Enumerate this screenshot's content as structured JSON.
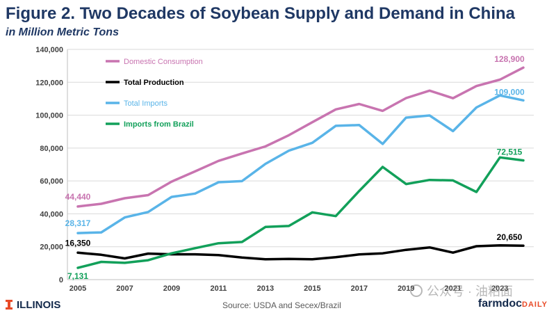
{
  "header": {
    "title": "Figure 2. Two Decades of Soybean Supply and Demand in China",
    "subtitle": "in Million Metric Tons"
  },
  "footer": {
    "source": "Source: USDA and Secex/Brazil",
    "left_logo": "ILLINOIS",
    "right_logo_farm": "farmdoc",
    "right_logo_daily": "DAILY",
    "watermark": "公众号 · 油粕面"
  },
  "colors": {
    "domestic": "#c874b0",
    "production": "#000000",
    "imports": "#59b4e8",
    "brazil": "#12a05a",
    "title": "#1f3864"
  },
  "chart_data": {
    "type": "line",
    "title": "Figure 2. Two Decades of Soybean Supply and Demand in China",
    "subtitle": "in Million Metric Tons",
    "x": [
      2005,
      2006,
      2007,
      2008,
      2009,
      2010,
      2011,
      2012,
      2013,
      2014,
      2015,
      2016,
      2017,
      2018,
      2019,
      2020,
      2021,
      2022,
      2023,
      2024
    ],
    "x_tick_labels": [
      "2005",
      "2007",
      "2009",
      "2011",
      "2013",
      "2015",
      "2017",
      "2019",
      "2021",
      "2023"
    ],
    "ylim": [
      0,
      140000
    ],
    "y_ticks": [
      "0",
      "20,000",
      "40,000",
      "60,000",
      "80,000",
      "100,000",
      "120,000",
      "140,000"
    ],
    "grid": true,
    "legend_position": "top-left",
    "series": [
      {
        "name": "Domestic Consumption",
        "color_key": "domestic",
        "values": [
          44440,
          46100,
          49500,
          51400,
          59600,
          65800,
          72200,
          76700,
          81000,
          87800,
          95700,
          103500,
          106800,
          102600,
          110400,
          114900,
          110300,
          117700,
          121600,
          128900
        ],
        "labels": [
          {
            "index": 0,
            "text": "44,440"
          },
          {
            "index": 19,
            "text": "128,900"
          }
        ]
      },
      {
        "name": "Total Production",
        "color_key": "production",
        "values": [
          16350,
          15100,
          12900,
          15800,
          15400,
          15400,
          14900,
          13400,
          12400,
          12600,
          12400,
          13600,
          15300,
          16000,
          18100,
          19600,
          16400,
          20300,
          20800,
          20650
        ],
        "labels": [
          {
            "index": 0,
            "text": "16,350"
          },
          {
            "index": 19,
            "text": "20,650"
          }
        ]
      },
      {
        "name": "Total Imports",
        "color_key": "imports",
        "values": [
          28317,
          28700,
          37800,
          41100,
          50300,
          52300,
          59200,
          59900,
          70400,
          78400,
          83200,
          93500,
          94000,
          82500,
          98500,
          99800,
          90300,
          104700,
          112000,
          109000
        ],
        "labels": [
          {
            "index": 0,
            "text": "28,317"
          },
          {
            "index": 19,
            "text": "109,000"
          }
        ]
      },
      {
        "name": "Imports from Brazil",
        "color_key": "brazil",
        "values": [
          7131,
          10800,
          10200,
          11800,
          16000,
          19100,
          22100,
          22900,
          32000,
          32600,
          40900,
          38600,
          53900,
          68500,
          58100,
          60600,
          60300,
          53300,
          74300,
          72515
        ],
        "labels": [
          {
            "index": 0,
            "text": "7,131"
          },
          {
            "index": 19,
            "text": "72,515"
          }
        ]
      }
    ]
  }
}
